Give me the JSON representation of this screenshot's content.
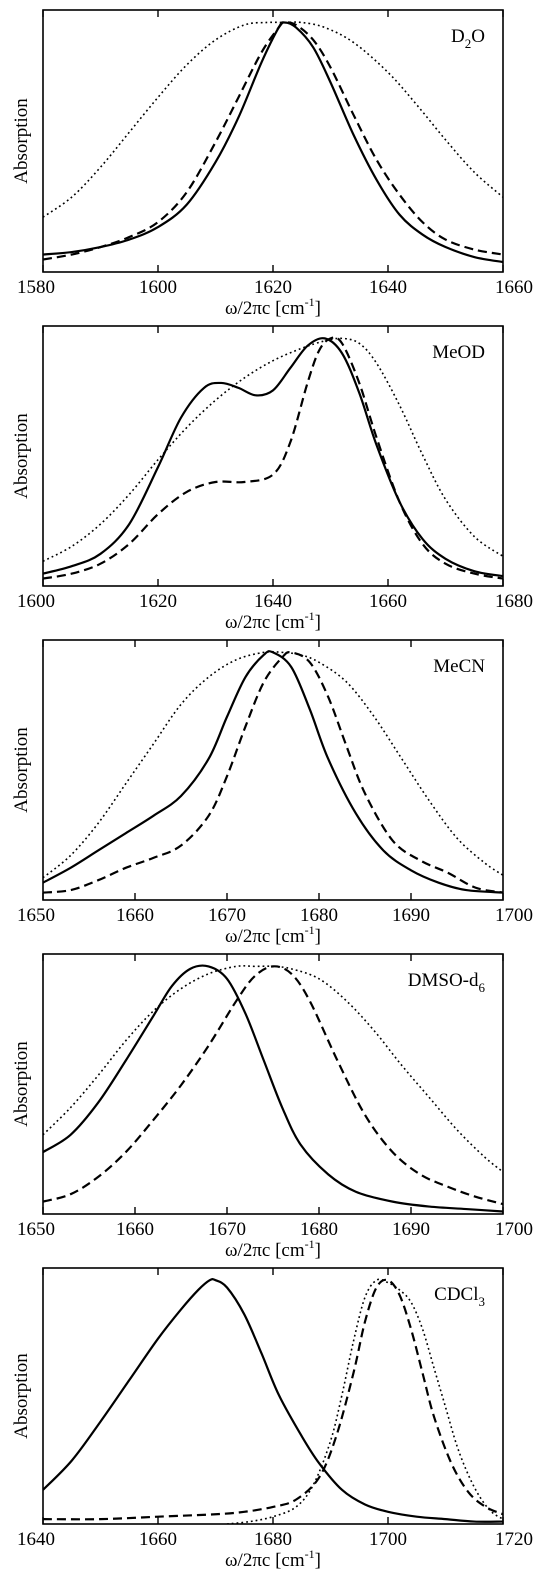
{
  "chart_data": [
    {
      "type": "line",
      "label_main": "D",
      "label_sub": "2",
      "label_tail": "O",
      "xlabel_main": "ω/2πc [cm",
      "xlabel_sup": "-1",
      "xlabel_tail": "]",
      "ylabel": "Absorption",
      "xlim": [
        1580,
        1660
      ],
      "ylim": [
        0,
        1.05
      ],
      "xticks": [
        1580,
        1600,
        1620,
        1640,
        1660
      ],
      "grid": false,
      "series": [
        {
          "style": "solid",
          "x": [
            1580,
            1585,
            1590,
            1595,
            1600,
            1605,
            1610,
            1614,
            1618,
            1621,
            1622,
            1624,
            1627,
            1630,
            1634,
            1638,
            1642,
            1646,
            1650,
            1655,
            1660
          ],
          "y": [
            0.07,
            0.08,
            0.1,
            0.13,
            0.18,
            0.27,
            0.44,
            0.62,
            0.84,
            0.98,
            1.0,
            0.98,
            0.9,
            0.76,
            0.55,
            0.37,
            0.23,
            0.15,
            0.1,
            0.06,
            0.04
          ]
        },
        {
          "style": "dashed",
          "x": [
            1580,
            1585,
            1590,
            1595,
            1600,
            1605,
            1610,
            1614,
            1618,
            1621,
            1622,
            1624,
            1627,
            1630,
            1634,
            1638,
            1642,
            1646,
            1650,
            1655,
            1660
          ],
          "y": [
            0.05,
            0.07,
            0.1,
            0.14,
            0.2,
            0.32,
            0.52,
            0.7,
            0.88,
            0.98,
            1.0,
            0.99,
            0.93,
            0.82,
            0.63,
            0.45,
            0.31,
            0.2,
            0.13,
            0.09,
            0.07
          ]
        },
        {
          "style": "dotted",
          "x": [
            1580,
            1585,
            1590,
            1595,
            1600,
            1605,
            1610,
            1615,
            1619,
            1622,
            1625,
            1629,
            1634,
            1640,
            1645,
            1650,
            1655,
            1660
          ],
          "y": [
            0.22,
            0.3,
            0.42,
            0.56,
            0.7,
            0.83,
            0.93,
            0.99,
            1.0,
            1.0,
            1.0,
            0.98,
            0.92,
            0.8,
            0.67,
            0.53,
            0.4,
            0.3
          ]
        }
      ]
    },
    {
      "type": "line",
      "label_main": "MeOD",
      "label_sub": "",
      "label_tail": "",
      "xlabel_main": "ω/2πc [cm",
      "xlabel_sup": "-1",
      "xlabel_tail": "]",
      "ylabel": "Absorption",
      "xlim": [
        1600,
        1680
      ],
      "ylim": [
        0,
        1.05
      ],
      "xticks": [
        1600,
        1620,
        1640,
        1660,
        1680
      ],
      "grid": false,
      "series": [
        {
          "style": "solid",
          "x": [
            1600,
            1605,
            1610,
            1615,
            1620,
            1624,
            1628,
            1631,
            1634,
            1637,
            1640,
            1643,
            1646,
            1649,
            1652,
            1655,
            1658,
            1662,
            1666,
            1670,
            1675,
            1680
          ],
          "y": [
            0.05,
            0.08,
            0.13,
            0.25,
            0.48,
            0.68,
            0.8,
            0.82,
            0.8,
            0.77,
            0.79,
            0.88,
            0.97,
            1.0,
            0.94,
            0.78,
            0.57,
            0.34,
            0.19,
            0.11,
            0.06,
            0.04
          ]
        },
        {
          "style": "dashed",
          "x": [
            1600,
            1605,
            1610,
            1615,
            1620,
            1625,
            1630,
            1635,
            1640,
            1643,
            1646,
            1648,
            1650,
            1652,
            1655,
            1658,
            1662,
            1666,
            1670,
            1675,
            1680
          ],
          "y": [
            0.03,
            0.05,
            0.09,
            0.17,
            0.29,
            0.38,
            0.42,
            0.42,
            0.45,
            0.58,
            0.82,
            0.95,
            1.0,
            0.98,
            0.82,
            0.6,
            0.34,
            0.17,
            0.09,
            0.05,
            0.03
          ]
        },
        {
          "style": "dotted",
          "x": [
            1600,
            1605,
            1610,
            1615,
            1620,
            1625,
            1630,
            1635,
            1640,
            1645,
            1649,
            1652,
            1655,
            1658,
            1662,
            1666,
            1670,
            1675,
            1680
          ],
          "y": [
            0.1,
            0.16,
            0.25,
            0.37,
            0.51,
            0.64,
            0.75,
            0.84,
            0.91,
            0.96,
            0.99,
            1.0,
            0.98,
            0.9,
            0.73,
            0.53,
            0.35,
            0.2,
            0.12
          ]
        }
      ]
    },
    {
      "type": "line",
      "label_main": "MeCN",
      "label_sub": "",
      "label_tail": "",
      "xlabel_main": "ω/2πc [cm",
      "xlabel_sup": "-1",
      "xlabel_tail": "]",
      "ylabel": "Absorption",
      "xlim": [
        1650,
        1700
      ],
      "ylim": [
        0,
        1.05
      ],
      "xticks": [
        1650,
        1660,
        1670,
        1680,
        1690,
        1700
      ],
      "grid": false,
      "series": [
        {
          "style": "solid",
          "x": [
            1650,
            1653,
            1656,
            1659,
            1662,
            1665,
            1668,
            1670,
            1672,
            1674,
            1675,
            1677,
            1679,
            1681,
            1684,
            1687,
            1690,
            1693,
            1696,
            1700
          ],
          "y": [
            0.07,
            0.13,
            0.2,
            0.27,
            0.34,
            0.42,
            0.57,
            0.74,
            0.9,
            0.99,
            1.0,
            0.94,
            0.77,
            0.57,
            0.35,
            0.2,
            0.12,
            0.07,
            0.04,
            0.03
          ]
        },
        {
          "style": "dashed",
          "x": [
            1650,
            1653,
            1656,
            1659,
            1662,
            1665,
            1668,
            1670,
            1672,
            1674,
            1676,
            1677,
            1679,
            1681,
            1683,
            1685,
            1688,
            1691,
            1694,
            1697,
            1700
          ],
          "y": [
            0.03,
            0.04,
            0.08,
            0.13,
            0.17,
            0.22,
            0.34,
            0.5,
            0.7,
            0.88,
            0.98,
            1.0,
            0.96,
            0.82,
            0.62,
            0.43,
            0.24,
            0.16,
            0.11,
            0.05,
            0.03
          ]
        },
        {
          "style": "dotted",
          "x": [
            1650,
            1653,
            1656,
            1659,
            1662,
            1665,
            1668,
            1671,
            1674,
            1676,
            1678,
            1680,
            1683,
            1686,
            1689,
            1692,
            1695,
            1698,
            1700
          ],
          "y": [
            0.09,
            0.18,
            0.31,
            0.47,
            0.63,
            0.79,
            0.9,
            0.97,
            1.0,
            1.0,
            0.99,
            0.96,
            0.88,
            0.74,
            0.57,
            0.4,
            0.25,
            0.15,
            0.1
          ]
        }
      ]
    },
    {
      "type": "line",
      "label_main": "DMSO-d",
      "label_sub": "6",
      "label_tail": "",
      "xlabel_main": "ω/2πc [cm",
      "xlabel_sup": "-1",
      "xlabel_tail": "]",
      "ylabel": "Absorption",
      "xlim": [
        1650,
        1700
      ],
      "ylim": [
        0,
        1.05
      ],
      "xticks": [
        1650,
        1660,
        1670,
        1680,
        1690,
        1700
      ],
      "grid": false,
      "series": [
        {
          "style": "solid",
          "x": [
            1650,
            1653,
            1656,
            1659,
            1662,
            1664,
            1666,
            1668,
            1670,
            1672,
            1674,
            1676,
            1678,
            1681,
            1684,
            1688,
            1692,
            1696,
            1700
          ],
          "y": [
            0.25,
            0.32,
            0.45,
            0.62,
            0.8,
            0.92,
            0.99,
            1.0,
            0.95,
            0.81,
            0.62,
            0.43,
            0.28,
            0.16,
            0.09,
            0.05,
            0.03,
            0.02,
            0.01
          ]
        },
        {
          "style": "dashed",
          "x": [
            1650,
            1653,
            1656,
            1659,
            1662,
            1665,
            1668,
            1671,
            1673,
            1675,
            1677,
            1679,
            1682,
            1685,
            1688,
            1691,
            1694,
            1697,
            1700
          ],
          "y": [
            0.05,
            0.08,
            0.15,
            0.25,
            0.38,
            0.52,
            0.68,
            0.86,
            0.96,
            1.0,
            0.97,
            0.86,
            0.62,
            0.4,
            0.25,
            0.16,
            0.11,
            0.07,
            0.04
          ]
        },
        {
          "style": "dotted",
          "x": [
            1650,
            1653,
            1656,
            1659,
            1662,
            1665,
            1668,
            1671,
            1673,
            1675,
            1677,
            1680,
            1683,
            1686,
            1689,
            1692,
            1695,
            1698,
            1700
          ],
          "y": [
            0.32,
            0.43,
            0.56,
            0.7,
            0.82,
            0.91,
            0.97,
            1.0,
            1.0,
            1.0,
            0.99,
            0.95,
            0.86,
            0.74,
            0.6,
            0.47,
            0.34,
            0.23,
            0.17
          ]
        }
      ]
    },
    {
      "type": "line",
      "label_main": "CDCl",
      "label_sub": "3",
      "label_tail": "",
      "xlabel_main": "ω/2πc [cm",
      "xlabel_sup": "-1",
      "xlabel_tail": "]",
      "ylabel": "Absorption",
      "xlim": [
        1640,
        1720
      ],
      "ylim": [
        0,
        1.05
      ],
      "xticks": [
        1640,
        1660,
        1680,
        1700,
        1720
      ],
      "grid": false,
      "series": [
        {
          "style": "solid",
          "x": [
            1640,
            1645,
            1650,
            1655,
            1660,
            1664,
            1667,
            1669,
            1670,
            1672,
            1675,
            1678,
            1681,
            1685,
            1688,
            1692,
            1696,
            1700,
            1705,
            1710,
            1715,
            1720
          ],
          "y": [
            0.14,
            0.26,
            0.42,
            0.59,
            0.76,
            0.88,
            0.96,
            1.0,
            1.0,
            0.97,
            0.86,
            0.7,
            0.53,
            0.36,
            0.25,
            0.14,
            0.08,
            0.05,
            0.03,
            0.02,
            0.01,
            0.01
          ]
        },
        {
          "style": "dashed",
          "x": [
            1640,
            1650,
            1660,
            1670,
            1675,
            1680,
            1684,
            1688,
            1691,
            1694,
            1696,
            1698,
            1700,
            1702,
            1704,
            1706,
            1708,
            1711,
            1714,
            1717,
            1720
          ],
          "y": [
            0.02,
            0.02,
            0.03,
            0.04,
            0.05,
            0.07,
            0.1,
            0.19,
            0.36,
            0.62,
            0.83,
            0.97,
            1.0,
            0.94,
            0.8,
            0.62,
            0.44,
            0.25,
            0.13,
            0.07,
            0.04
          ]
        },
        {
          "style": "dotted",
          "x": [
            1672,
            1676,
            1680,
            1684,
            1687,
            1690,
            1692,
            1694,
            1696,
            1698,
            1700,
            1702,
            1704,
            1706,
            1708,
            1710,
            1712,
            1714,
            1716,
            1718,
            1720
          ],
          "y": [
            0.0,
            0.01,
            0.03,
            0.07,
            0.16,
            0.34,
            0.53,
            0.75,
            0.93,
            1.0,
            0.99,
            0.96,
            0.91,
            0.8,
            0.64,
            0.48,
            0.32,
            0.2,
            0.11,
            0.05,
            0.02
          ]
        }
      ]
    }
  ]
}
